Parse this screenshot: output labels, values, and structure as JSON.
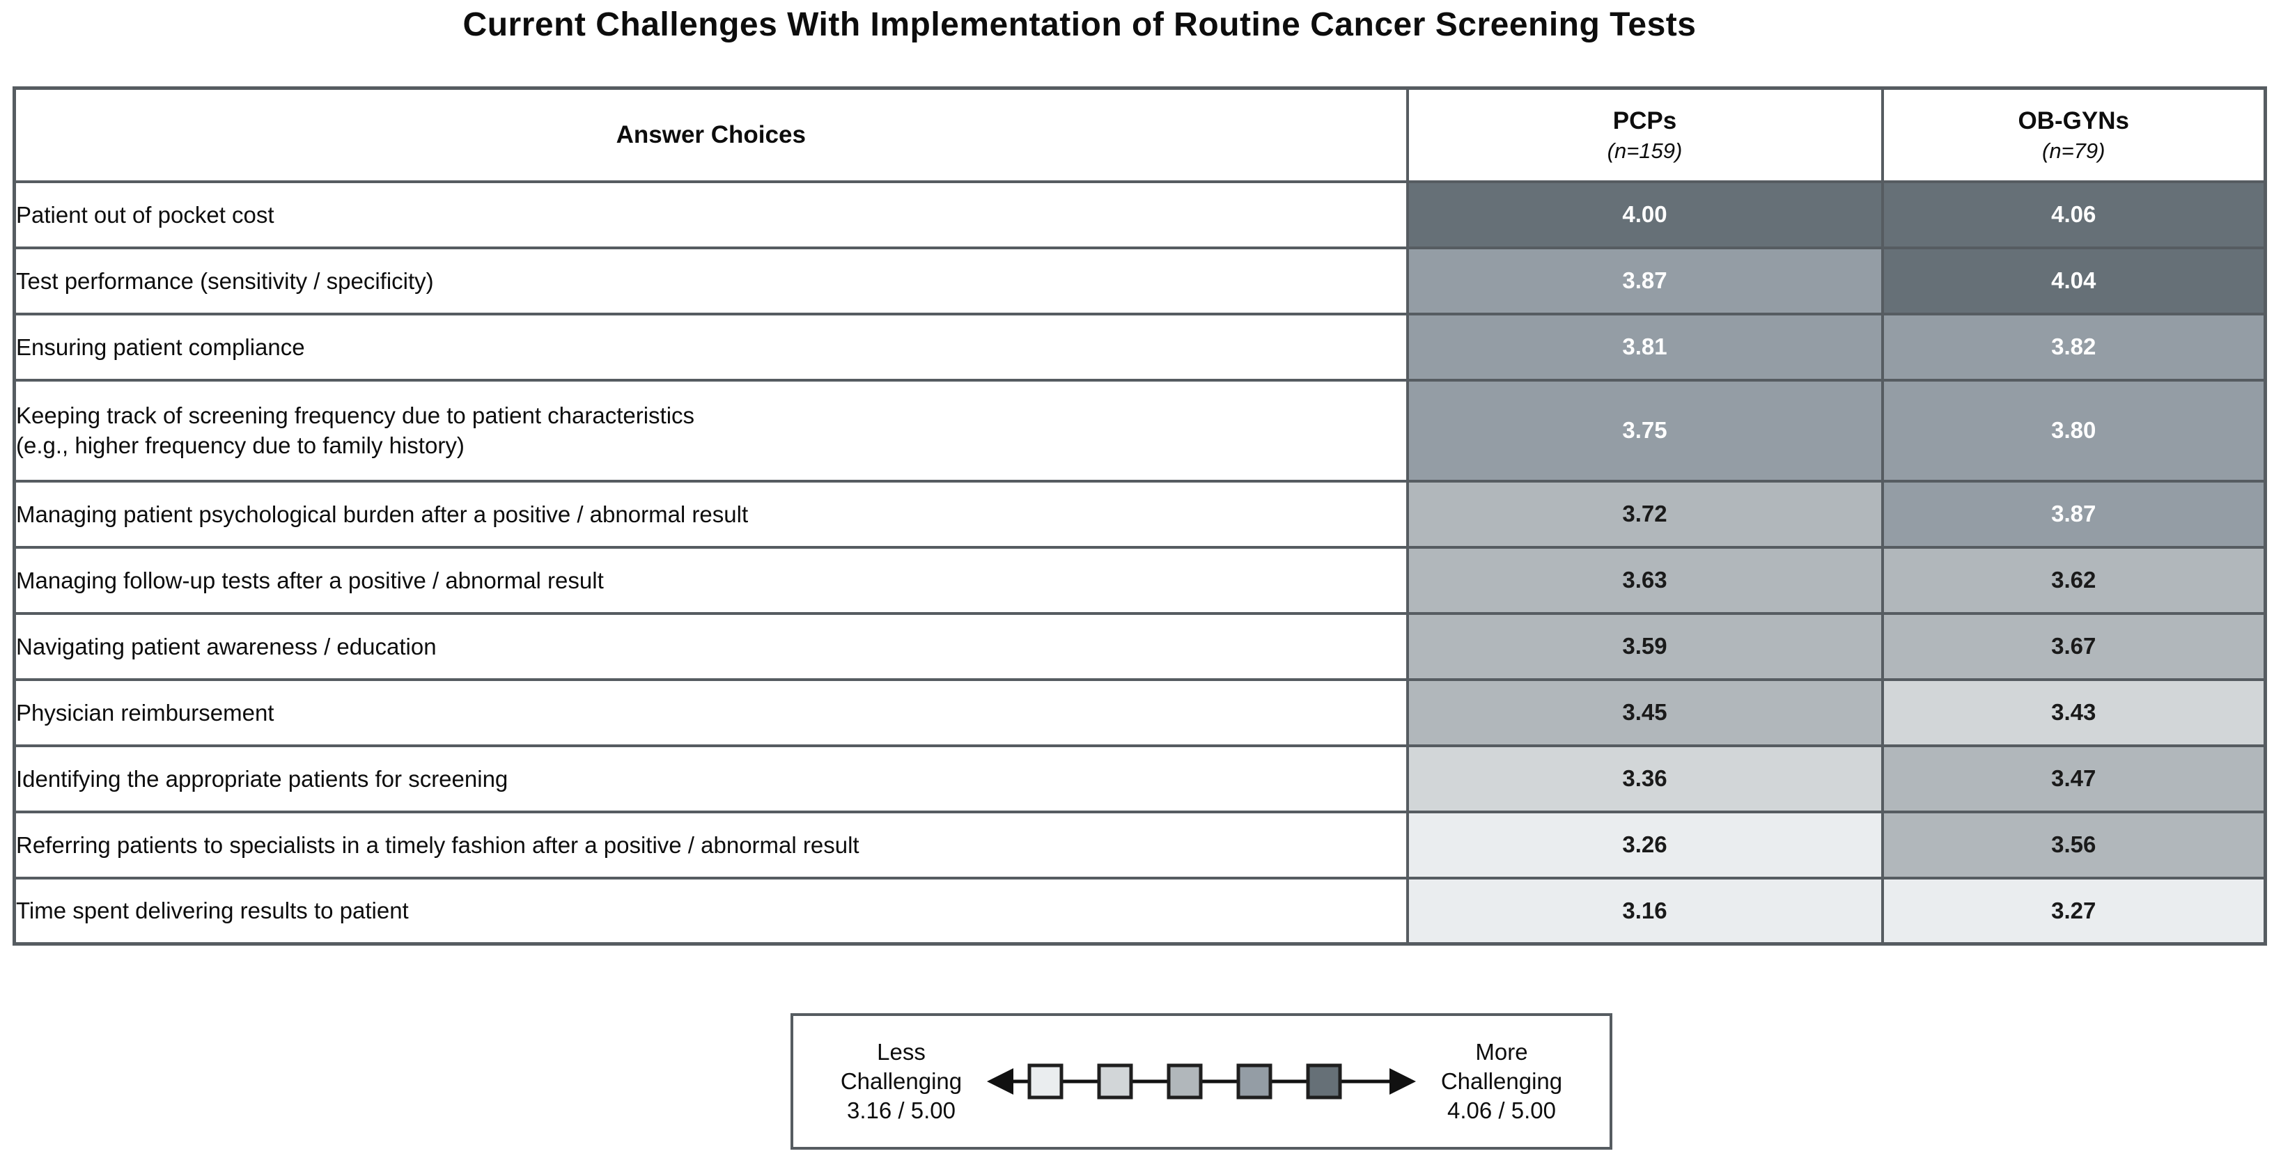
{
  "title": "Current Challenges With Implementation of Routine Cancer Screening Tests",
  "heat_scale": {
    "colors": {
      "1": "#eaedef",
      "2": "#d2d6d8",
      "3": "#b1b7bb",
      "4": "#949da5",
      "5": "#667077"
    },
    "text_colors": {
      "1": "#1a1a1a",
      "2": "#1a1a1a",
      "3": "#1a1a1a",
      "4": "#ffffff",
      "5": "#ffffff"
    }
  },
  "table": {
    "header": {
      "answer_choices": "Answer Choices",
      "pcp_name": "PCPs",
      "pcp_n": "(n=159)",
      "obgyn_name": "OB-GYNs",
      "obgyn_n": "(n=79)"
    },
    "rows": [
      {
        "label_lines": [
          "Patient out of pocket cost"
        ],
        "pcp": {
          "value": "4.00",
          "tier": 5
        },
        "obgyn": {
          "value": "4.06",
          "tier": 5
        }
      },
      {
        "label_lines": [
          "Test performance (sensitivity / specificity)"
        ],
        "pcp": {
          "value": "3.87",
          "tier": 4
        },
        "obgyn": {
          "value": "4.04",
          "tier": 5
        }
      },
      {
        "label_lines": [
          "Ensuring patient compliance"
        ],
        "pcp": {
          "value": "3.81",
          "tier": 4
        },
        "obgyn": {
          "value": "3.82",
          "tier": 4
        }
      },
      {
        "label_lines": [
          "Keeping track of screening frequency due to patient characteristics",
          "(e.g., higher frequency due to family history)"
        ],
        "pcp": {
          "value": "3.75",
          "tier": 4
        },
        "obgyn": {
          "value": "3.80",
          "tier": 4
        }
      },
      {
        "label_lines": [
          "Managing patient psychological burden after a positive / abnormal result"
        ],
        "pcp": {
          "value": "3.72",
          "tier": 3
        },
        "obgyn": {
          "value": "3.87",
          "tier": 4
        }
      },
      {
        "label_lines": [
          "Managing follow-up tests after a positive / abnormal result"
        ],
        "pcp": {
          "value": "3.63",
          "tier": 3
        },
        "obgyn": {
          "value": "3.62",
          "tier": 3
        }
      },
      {
        "label_lines": [
          "Navigating patient awareness / education"
        ],
        "pcp": {
          "value": "3.59",
          "tier": 3
        },
        "obgyn": {
          "value": "3.67",
          "tier": 3
        }
      },
      {
        "label_lines": [
          "Physician reimbursement"
        ],
        "pcp": {
          "value": "3.45",
          "tier": 3
        },
        "obgyn": {
          "value": "3.43",
          "tier": 2
        }
      },
      {
        "label_lines": [
          "Identifying the appropriate patients for screening"
        ],
        "pcp": {
          "value": "3.36",
          "tier": 2
        },
        "obgyn": {
          "value": "3.47",
          "tier": 3
        }
      },
      {
        "label_lines": [
          "Referring patients to specialists in a timely fashion after a positive / abnormal result"
        ],
        "pcp": {
          "value": "3.26",
          "tier": 1
        },
        "obgyn": {
          "value": "3.56",
          "tier": 3
        }
      },
      {
        "label_lines": [
          "Time spent delivering results to patient"
        ],
        "pcp": {
          "value": "3.16",
          "tier": 1
        },
        "obgyn": {
          "value": "3.27",
          "tier": 1
        }
      }
    ]
  },
  "legend": {
    "less_line1": "Less",
    "less_line2": "Challenging",
    "less_line3": "3.16 / 5.00",
    "more_line1": "More",
    "more_line2": "Challenging",
    "more_line3": "4.06 / 5.00",
    "squares": [
      "#eaedef",
      "#d2d6d8",
      "#b1b7bb",
      "#949da5",
      "#667077"
    ]
  },
  "chart_data": {
    "type": "heatmap",
    "title": "Current Challenges With Implementation of Routine Cancer Screening Tests",
    "categories": [
      "Patient out of pocket cost",
      "Test performance (sensitivity / specificity)",
      "Ensuring patient compliance",
      "Keeping track of screening frequency due to patient characteristics (e.g., higher frequency due to family history)",
      "Managing patient psychological burden after a positive / abnormal result",
      "Managing follow-up tests after a positive / abnormal result",
      "Navigating patient awareness / education",
      "Physician reimbursement",
      "Identifying the appropriate patients for screening",
      "Referring patients to specialists in a timely fashion after a positive / abnormal result",
      "Time spent delivering results to patient"
    ],
    "series": [
      {
        "name": "PCPs",
        "n": 159,
        "values": [
          4.0,
          3.87,
          3.81,
          3.75,
          3.72,
          3.63,
          3.59,
          3.45,
          3.36,
          3.26,
          3.16
        ]
      },
      {
        "name": "OB-GYNs",
        "n": 79,
        "values": [
          4.06,
          4.04,
          3.82,
          3.8,
          3.87,
          3.62,
          3.67,
          3.43,
          3.47,
          3.56,
          3.27
        ]
      }
    ],
    "scale": {
      "min": 3.16,
      "max": 4.06,
      "out_of": 5.0,
      "min_label": "Less Challenging",
      "max_label": "More Challenging"
    },
    "legend_position": "bottom"
  }
}
